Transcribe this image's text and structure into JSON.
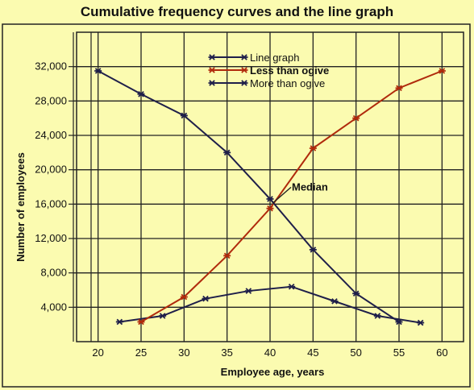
{
  "chart_data": {
    "type": "line",
    "title": "Cumulative frequency curves and the line graph",
    "xlabel": "Employee age, years",
    "ylabel": "Number of employees",
    "xlim": [
      17.5,
      62.5
    ],
    "ylim": [
      0,
      36000
    ],
    "x_ticks": [
      20,
      25,
      30,
      35,
      40,
      45,
      50,
      55,
      60
    ],
    "y_ticks": [
      4000,
      8000,
      12000,
      16000,
      20000,
      24000,
      28000,
      32000
    ],
    "y_tick_labels": [
      "4,000",
      "8,000",
      "12,000",
      "16,000",
      "20,000",
      "24,000",
      "28,000",
      "32,000"
    ],
    "grid": true,
    "legend_position": "top-center",
    "series": [
      {
        "name": "Line graph",
        "color": "#1f1f4a",
        "x": [
          22.5,
          27.5,
          32.5,
          37.5,
          42.5,
          47.5,
          52.5,
          57.5
        ],
        "y": [
          2300,
          3000,
          5000,
          5900,
          6400,
          4700,
          3000,
          2200
        ]
      },
      {
        "name": "Less than ogive",
        "color": "#b02a0c",
        "x": [
          25,
          30,
          35,
          40,
          45,
          50,
          55,
          60
        ],
        "y": [
          2300,
          5200,
          10000,
          15500,
          22500,
          26000,
          29500,
          31500
        ]
      },
      {
        "name": "More than ogive",
        "color": "#1f1f4a",
        "x": [
          20,
          25,
          30,
          35,
          40,
          45,
          50,
          55
        ],
        "y": [
          31500,
          28800,
          26300,
          22000,
          16600,
          10700,
          5600,
          2300
        ]
      }
    ],
    "annotations": [
      {
        "text": "Median",
        "x": 40,
        "y": 15900
      }
    ]
  }
}
